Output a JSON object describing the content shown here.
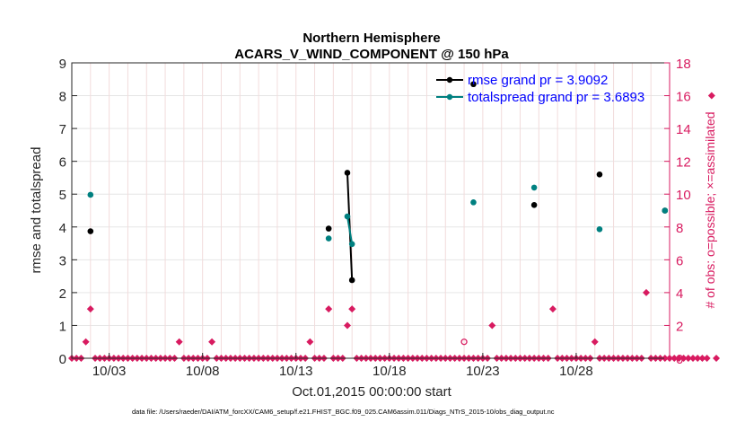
{
  "chart_data": {
    "type": "scatter",
    "title": "Northern Hemisphere",
    "subtitle": "ACARS_V_WIND_COMPONENT @ 150 hPa",
    "xlabel": "Oct.01,2015 00:00:00 start",
    "ylabel": "rmse and totalspread",
    "y2label": "# of obs: o=possible; ×=assimilated",
    "footer": "data file: /Users/raeder/DAI/ATM_forcXX/CAM6_setup/f.e21.FHIST_BGC.f09_025.CAM6assim.011/Diags_NTrS_2015-10/obs_diag_output.nc",
    "xlim": [
      1.0,
      33.0
    ],
    "ylim": [
      0,
      9
    ],
    "y2lim": [
      0,
      18
    ],
    "yticks": [
      "0",
      "1",
      "2",
      "3",
      "4",
      "5",
      "6",
      "7",
      "8",
      "9"
    ],
    "y2ticks": [
      "0",
      "2",
      "4",
      "6",
      "8",
      "10",
      "12",
      "14",
      "16",
      "18"
    ],
    "xticks": [
      {
        "value": 3.0,
        "label": "10/03"
      },
      {
        "value": 8.0,
        "label": "10/08"
      },
      {
        "value": 13.0,
        "label": "10/13"
      },
      {
        "value": 18.0,
        "label": "10/18"
      },
      {
        "value": 23.0,
        "label": "10/23"
      },
      {
        "value": 28.0,
        "label": "10/28"
      }
    ],
    "grid": true,
    "legend_position": "top-right",
    "series": [
      {
        "name": "rmse grand pr = 3.9092",
        "color": "#000000",
        "axis": "left",
        "points": [
          {
            "x": 2.0,
            "y": 3.87
          },
          {
            "x": 14.75,
            "y": 3.95
          },
          {
            "x": 15.75,
            "y": 5.65,
            "joined": true
          },
          {
            "x": 16.0,
            "y": 2.38,
            "joined": true
          },
          {
            "x": 22.5,
            "y": 8.35
          },
          {
            "x": 25.75,
            "y": 4.67
          },
          {
            "x": 29.25,
            "y": 5.6
          },
          {
            "x": 32.75,
            "y": 4.5
          }
        ]
      },
      {
        "name": "totalspread grand pr = 3.6893",
        "color": "#008080",
        "axis": "left",
        "points": [
          {
            "x": 2.0,
            "y": 4.98
          },
          {
            "x": 14.75,
            "y": 3.65
          },
          {
            "x": 15.75,
            "y": 4.32,
            "joined": true
          },
          {
            "x": 16.0,
            "y": 3.48,
            "joined": true
          },
          {
            "x": 22.5,
            "y": 4.75
          },
          {
            "x": 25.75,
            "y": 5.2
          },
          {
            "x": 29.25,
            "y": 3.93
          },
          {
            "x": 32.75,
            "y": 4.5
          }
        ]
      }
    ],
    "obs_counts": {
      "color": "#d81b60",
      "axis": "right",
      "x_start": 1.0,
      "x_step": 0.25,
      "assimilated": [
        0,
        0,
        0,
        1,
        3,
        0,
        0,
        0,
        0,
        0,
        0,
        0,
        0,
        0,
        0,
        0,
        0,
        0,
        0,
        0,
        0,
        0,
        0,
        1,
        0,
        0,
        0,
        0,
        0,
        0,
        1,
        0,
        0,
        0,
        0,
        0,
        0,
        0,
        0,
        0,
        0,
        0,
        0,
        0,
        0,
        0,
        0,
        0,
        0,
        0,
        0,
        1,
        0,
        0,
        0,
        3,
        0,
        0,
        0,
        2,
        3,
        0,
        0,
        0,
        0,
        0,
        0,
        0,
        0,
        0,
        0,
        0,
        0,
        0,
        0,
        0,
        0,
        0,
        0,
        0,
        0,
        0,
        0,
        0,
        0,
        0,
        0,
        0,
        0,
        0,
        2,
        0,
        0,
        0,
        0,
        0,
        0,
        0,
        0,
        0,
        0,
        0,
        0,
        3,
        0,
        0,
        0,
        0,
        0,
        0,
        0,
        0,
        1,
        0,
        0,
        0,
        0,
        0,
        0,
        0,
        0,
        0,
        0,
        4,
        0,
        0,
        0,
        0,
        0,
        0,
        0,
        0,
        0,
        0,
        0,
        0,
        0,
        16,
        0
      ],
      "possible_only": [
        {
          "x": 22.0,
          "y": 1
        }
      ]
    }
  }
}
